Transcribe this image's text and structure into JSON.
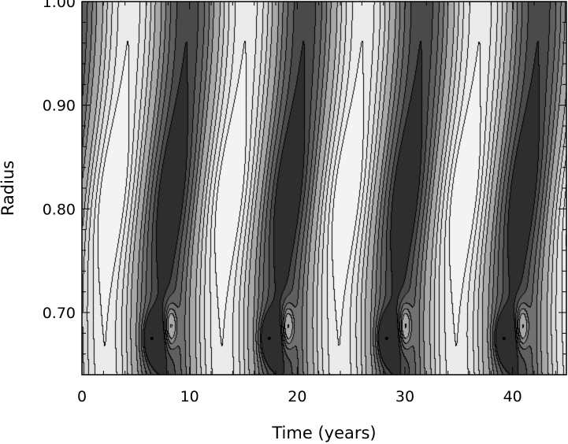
{
  "chart_data": {
    "type": "heatmap",
    "subtype": "filled-contour",
    "colormap": "grayscale",
    "xlabel": "Time (years)",
    "ylabel": "Radius",
    "xlim": [
      0,
      45
    ],
    "ylim": [
      0.64,
      1.0
    ],
    "x_ticks": [
      0,
      10,
      20,
      30,
      40
    ],
    "x_tick_labels": [
      "0",
      "10",
      "20",
      "30",
      "40"
    ],
    "y_ticks": [
      0.7,
      0.8,
      0.9,
      1.0
    ],
    "y_tick_labels": [
      "0.70",
      "0.80",
      "0.90",
      "1.00"
    ],
    "grid": false,
    "period_years": 10.9,
    "levels": [
      -0.9,
      -0.75,
      -0.55,
      -0.35,
      -0.15,
      0.15,
      0.35,
      0.55,
      0.75,
      0.9
    ],
    "features": [
      {
        "kind": "maximum",
        "shade": "light",
        "x_range": [
          2.5,
          7.1
        ],
        "y_range": [
          0.72,
          0.89
        ]
      },
      {
        "kind": "minimum",
        "shade": "dark",
        "x_range": [
          8.0,
          12.4
        ],
        "y_range": [
          0.71,
          0.9
        ]
      },
      {
        "kind": "maximum",
        "shade": "light",
        "x_range": [
          13.4,
          18.0
        ],
        "y_range": [
          0.72,
          0.89
        ]
      },
      {
        "kind": "minimum",
        "shade": "dark",
        "x_range": [
          18.9,
          23.3
        ],
        "y_range": [
          0.71,
          0.9
        ]
      },
      {
        "kind": "maximum",
        "shade": "light",
        "x_range": [
          24.3,
          28.9
        ],
        "y_range": [
          0.72,
          0.89
        ]
      },
      {
        "kind": "minimum",
        "shade": "dark",
        "x_range": [
          29.8,
          34.2
        ],
        "y_range": [
          0.71,
          0.9
        ]
      },
      {
        "kind": "maximum",
        "shade": "light",
        "x_range": [
          35.2,
          39.8
        ],
        "y_range": [
          0.72,
          0.89
        ]
      },
      {
        "kind": "minimum",
        "shade": "dark",
        "x_range": [
          40.7,
          45.0
        ],
        "y_range": [
          0.71,
          0.9
        ]
      }
    ]
  }
}
